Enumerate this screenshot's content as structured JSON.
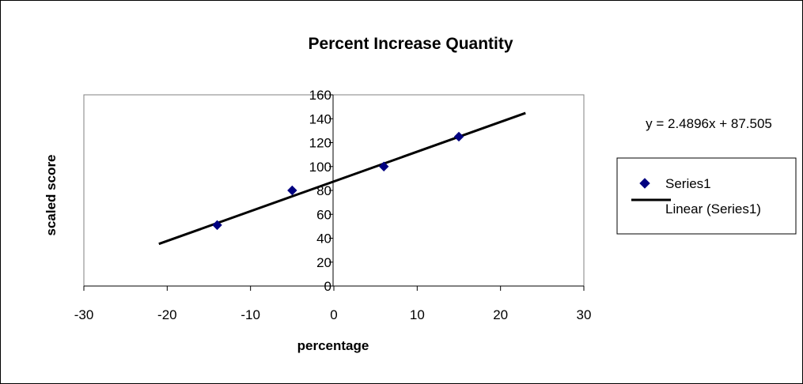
{
  "chart_data": {
    "type": "scatter",
    "title": "Percent Increase Quantity",
    "xlabel": "percentage",
    "ylabel": "scaled score",
    "xlim": [
      -30,
      30
    ],
    "ylim": [
      0,
      160
    ],
    "x_ticks": [
      -30,
      -20,
      -10,
      0,
      10,
      20,
      30
    ],
    "y_ticks": [
      0,
      20,
      40,
      60,
      80,
      100,
      120,
      140,
      160
    ],
    "grid": false,
    "legend_position": "right",
    "series": [
      {
        "name": "Series1",
        "marker": "diamond",
        "color": "#000080",
        "points": [
          {
            "x": -14,
            "y": 51
          },
          {
            "x": -5,
            "y": 80
          },
          {
            "x": 6,
            "y": 100
          },
          {
            "x": 15,
            "y": 125
          }
        ]
      }
    ],
    "trendline": {
      "name": "Linear (Series1)",
      "slope": 2.4896,
      "intercept": 87.505,
      "x_range": [
        -21,
        23
      ],
      "color": "#000000",
      "equation_label": "y = 2.4896x + 87.505"
    }
  }
}
